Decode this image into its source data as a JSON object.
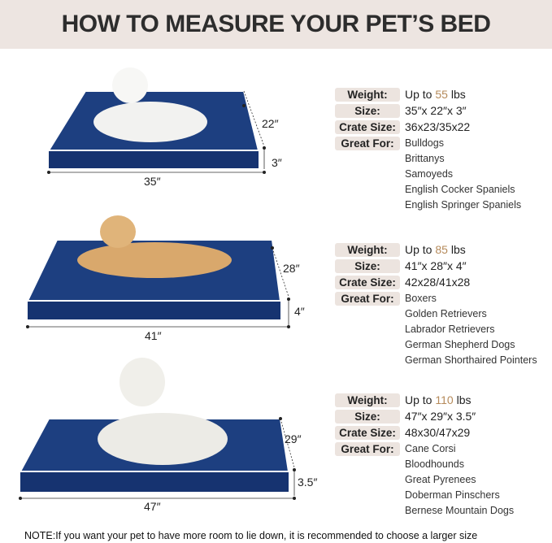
{
  "header": {
    "title": "HOW TO MEASURE YOUR PET’S BED"
  },
  "colors": {
    "header_bg": "#ede5e1",
    "bed": "#1d3d7a",
    "accent_number": "#b58a5a",
    "label_bg": "#ece4df"
  },
  "labels": {
    "weight": "Weight:",
    "size": "Size:",
    "crate": "Crate Size:",
    "great": "Great For:"
  },
  "beds": [
    {
      "length": "35″",
      "width": "22″",
      "height": "3″",
      "weight_prefix": "Up to ",
      "weight_num": "55",
      "weight_unit": " lbs",
      "size": "35″x 22″x 3″",
      "crate": "36x23/35x22",
      "breeds": [
        "Bulldogs",
        "Brittanys",
        "Samoyeds",
        "English Cocker Spaniels",
        "English Springer Spaniels"
      ]
    },
    {
      "length": "41″",
      "width": "28″",
      "height": "4″",
      "weight_prefix": "Up to ",
      "weight_num": "85",
      "weight_unit": " lbs",
      "size": "41″x 28″x 4″",
      "crate": "42x28/41x28",
      "breeds": [
        "Boxers",
        "Golden Retrievers",
        "Labrador Retrievers",
        "German Shepherd Dogs",
        "German Shorthaired Pointers"
      ]
    },
    {
      "length": "47″",
      "width": "29″",
      "height": "3.5″",
      "weight_prefix": "Up to ",
      "weight_num": "110",
      "weight_unit": " lbs",
      "size": "47″x 29″x 3.5″",
      "crate": "48x30/47x29",
      "breeds": [
        "Cane Corsi",
        "Bloodhounds",
        "Great Pyrenees",
        "Doberman Pinschers",
        "Bernese Mountain Dogs"
      ]
    }
  ],
  "note": "NOTE:If you want your pet to have more room to lie down, it is recommended to choose a larger size"
}
